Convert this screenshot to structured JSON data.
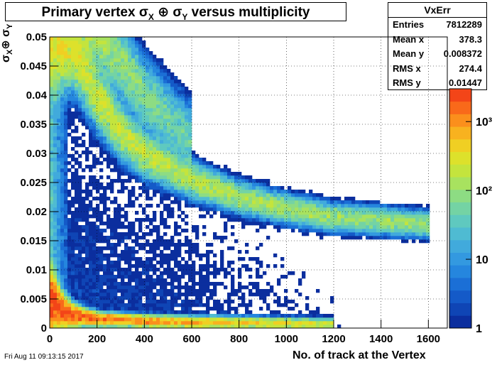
{
  "title": {
    "pre": "Primary vertex σ",
    "sub1": "X",
    "mid": " ⊕ σ",
    "sub2": "Y",
    "post": " versus multiplicity"
  },
  "stats": {
    "name": "VxErr",
    "rows": [
      {
        "label": "Entries",
        "value": "7812289"
      },
      {
        "label": "Mean x",
        "value": "378.3"
      },
      {
        "label": "Mean y",
        "value": "0.008372"
      },
      {
        "label": "RMS x",
        "value": "274.4"
      },
      {
        "label": "RMS y",
        "value": "0.01447"
      }
    ]
  },
  "date": "Fri Aug 11 09:13:15 2017",
  "xtitle": "No. of track at the Vertex",
  "ytitle": {
    "a": "σ",
    "sub1": "X",
    "b": "⊕ σ",
    "sub2": "Y"
  },
  "palette_colors": [
    "#0b2e9e",
    "#0f45b5",
    "#145ac8",
    "#1b6fd6",
    "#2586de",
    "#3399e0",
    "#41aadc",
    "#4fbbd2",
    "#5fc9bf",
    "#74d3a4",
    "#8ddc83",
    "#a8e25f",
    "#c4e43d",
    "#dde12b",
    "#f0cf23",
    "#f8b21f",
    "#fb8f1c",
    "#f9691a",
    "#f34518"
  ],
  "chart_data": {
    "type": "heatmap",
    "title": "Primary vertex σX ⊕ σY versus multiplicity",
    "xlabel": "No. of track at the Vertex",
    "ylabel": "σX ⊕ σY",
    "xlim": [
      0,
      1680
    ],
    "ylim": [
      0,
      0.05
    ],
    "x_ticks": [
      "0",
      "200",
      "400",
      "600",
      "800",
      "1000",
      "1200",
      "1400",
      "1600"
    ],
    "y_ticks": [
      "0",
      "0.005",
      "0.01",
      "0.015",
      "0.02",
      "0.025",
      "0.03",
      "0.035",
      "0.04",
      "0.045",
      "0.05"
    ],
    "z_scale": "log",
    "z_ticks": [
      "1",
      "10",
      "10²",
      "10³"
    ],
    "z_range": [
      1,
      3000
    ],
    "grid": true,
    "bands": [
      {
        "name": "low",
        "points": [
          [
            20,
            0.0045
          ],
          [
            50,
            0.003
          ],
          [
            100,
            0.0022
          ],
          [
            200,
            0.0016
          ],
          [
            400,
            0.0012
          ],
          [
            600,
            0.001
          ],
          [
            800,
            0.0009
          ],
          [
            1000,
            0.0008
          ],
          [
            1200,
            0.0007
          ]
        ],
        "peak_count": 2500
      },
      {
        "name": "middle",
        "points": [
          [
            100,
            0.048
          ],
          [
            200,
            0.04
          ],
          [
            300,
            0.034
          ],
          [
            400,
            0.03
          ],
          [
            600,
            0.0255
          ],
          [
            800,
            0.0225
          ],
          [
            1000,
            0.0205
          ],
          [
            1200,
            0.019
          ],
          [
            1400,
            0.0185
          ],
          [
            1600,
            0.0178
          ]
        ],
        "peak_count": 250
      },
      {
        "name": "upper",
        "points": [
          [
            200,
            0.05
          ],
          [
            300,
            0.046
          ],
          [
            400,
            0.04
          ],
          [
            500,
            0.036
          ],
          [
            600,
            0.032
          ]
        ],
        "peak_count": 120
      }
    ],
    "stats": {
      "entries": 7812289,
      "mean_x": 378.3,
      "mean_y": 0.008372,
      "rms_x": 274.4,
      "rms_y": 0.01447
    }
  }
}
